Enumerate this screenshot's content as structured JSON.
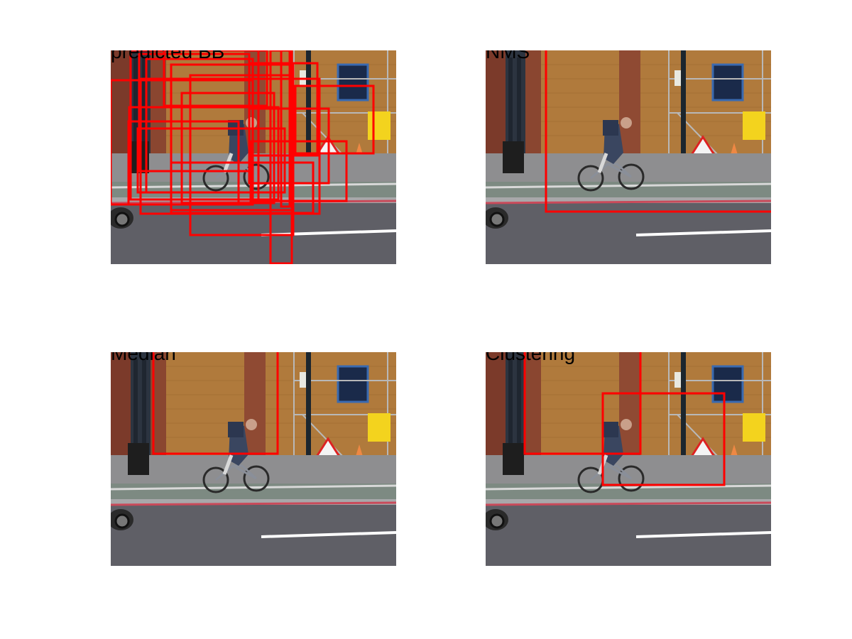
{
  "figure": {
    "panels": [
      {
        "id": "predicted",
        "title": "predicted BB"
      },
      {
        "id": "nms",
        "title": "NMS"
      },
      {
        "id": "median",
        "title": "Median"
      },
      {
        "id": "clustering",
        "title": "Clustering"
      }
    ]
  },
  "colors": {
    "box": "#ff0000",
    "brick": "#b07a3c",
    "road": "#5f5f66",
    "pavement": "#8e8e90",
    "kerb": "#c94a5a"
  }
}
